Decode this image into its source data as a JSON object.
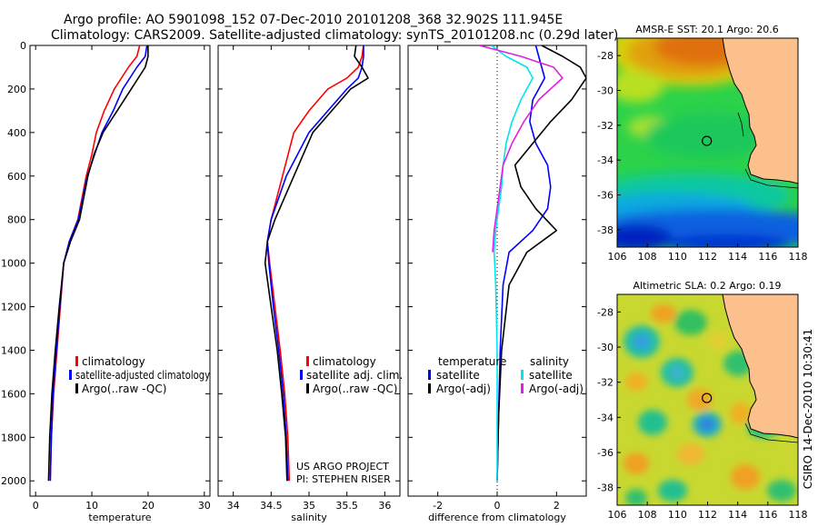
{
  "header": {
    "line1": "Argo profile: AO 5901098_152 07-Dec-2010 20101208_368 32.902S 111.945E",
    "line2": "Climatology: CARS2009. Satellite-adjusted climatology: synTS_20101208.nc (0.29d later)"
  },
  "side_label": "CSIRO 14-Dec-2010 10:30:41",
  "project": {
    "line1": "US ARGO PROJECT",
    "line2": "PI: STEPHEN RISER"
  },
  "colors": {
    "climatology": "#ff0000",
    "satellite": "#0000ff",
    "argo": "#000000",
    "sat_salinity": "#00e5ee",
    "argo_salinity": "#e020e0",
    "land": "#fbc08c"
  },
  "chart_data": [
    {
      "type": "line",
      "xlabel": "temperature",
      "xlim": [
        -1,
        31
      ],
      "ylim": [
        2070,
        0
      ],
      "xticks": [
        0,
        10,
        20,
        30
      ],
      "yticks": [
        0,
        200,
        400,
        600,
        800,
        1000,
        1200,
        1400,
        1600,
        1800,
        2000
      ],
      "legend": [
        "climatology",
        "satellite-adjusted climatology",
        "Argo(..raw -QC)"
      ],
      "series": [
        {
          "name": "climatology",
          "color": "#ff0000",
          "x": [
            18.5,
            18.0,
            16.5,
            14.0,
            12.2,
            10.8,
            10.0,
            9.0,
            7.5,
            6.0,
            5.0,
            4.4,
            3.8,
            3.2,
            2.8,
            2.6
          ],
          "y": [
            0,
            50,
            100,
            200,
            300,
            400,
            500,
            600,
            800,
            900,
            1000,
            1200,
            1400,
            1600,
            1800,
            2000
          ]
        },
        {
          "name": "satellite-adjusted climatology",
          "color": "#0000ff",
          "x": [
            19.8,
            19.5,
            18.0,
            15.5,
            13.8,
            11.8,
            10.5,
            9.2,
            7.6,
            6.0,
            5.0,
            4.3,
            3.7,
            3.1,
            2.8,
            2.6
          ],
          "y": [
            0,
            50,
            100,
            200,
            300,
            400,
            500,
            600,
            800,
            900,
            1000,
            1200,
            1400,
            1600,
            1800,
            2000
          ]
        },
        {
          "name": "Argo(..raw -QC)",
          "color": "#000000",
          "x": [
            20.0,
            20.0,
            19.5,
            17.0,
            14.5,
            12.0,
            10.4,
            9.3,
            7.8,
            6.2,
            5.0,
            4.2,
            3.5,
            2.9,
            2.5,
            2.3
          ],
          "y": [
            0,
            50,
            100,
            200,
            300,
            400,
            500,
            600,
            800,
            900,
            1000,
            1200,
            1400,
            1600,
            1800,
            2000
          ]
        }
      ]
    },
    {
      "type": "line",
      "xlabel": "salinity",
      "xlim": [
        33.8,
        36.2
      ],
      "ylim": [
        2070,
        0
      ],
      "xticks": [
        34,
        34.5,
        35,
        35.5,
        36
      ],
      "yticks": [
        0,
        200,
        400,
        600,
        800,
        1000,
        1200,
        1400,
        1600,
        1800,
        2000
      ],
      "legend": [
        "climatology",
        "satellite adj. clim.",
        "Argo(..raw -QC)"
      ],
      "series": [
        {
          "name": "climatology",
          "color": "#ff0000",
          "x": [
            35.72,
            35.7,
            35.65,
            35.5,
            35.25,
            35.0,
            34.8,
            34.65,
            34.5,
            34.45,
            34.48,
            34.55,
            34.62,
            34.68,
            34.72,
            34.74
          ],
          "y": [
            0,
            50,
            100,
            150,
            200,
            300,
            400,
            600,
            800,
            900,
            1000,
            1200,
            1400,
            1600,
            1800,
            2000
          ]
        },
        {
          "name": "satellite adj. clim.",
          "color": "#0000ff",
          "x": [
            35.72,
            35.72,
            35.7,
            35.65,
            35.5,
            35.25,
            35.0,
            34.7,
            34.5,
            34.45,
            34.47,
            34.53,
            34.6,
            34.66,
            34.7,
            34.72
          ],
          "y": [
            0,
            50,
            100,
            150,
            200,
            300,
            400,
            600,
            800,
            900,
            1000,
            1200,
            1400,
            1600,
            1800,
            2000
          ]
        },
        {
          "name": "Argo(..raw -QC)",
          "color": "#000000",
          "x": [
            35.62,
            35.6,
            35.7,
            35.78,
            35.55,
            35.3,
            35.05,
            34.8,
            34.55,
            34.45,
            34.42,
            34.5,
            34.58,
            34.64,
            34.69,
            34.71
          ],
          "y": [
            0,
            50,
            100,
            150,
            200,
            300,
            400,
            600,
            800,
            900,
            1000,
            1200,
            1400,
            1600,
            1800,
            2000
          ]
        }
      ]
    },
    {
      "type": "line",
      "xlabel": "difference from climatology",
      "xlim": [
        -3,
        3
      ],
      "ylim": [
        2070,
        0
      ],
      "xticks": [
        -2,
        0,
        2
      ],
      "yticks": [
        0,
        200,
        400,
        600,
        800,
        1000,
        1200,
        1400,
        1600,
        1800,
        2000
      ],
      "legend": [
        "temperature",
        "satellite",
        "Argo(-adj)",
        "salinity",
        "satellite",
        "Argo(-adj)"
      ],
      "series": [
        {
          "name": "satellite",
          "color": "#0000ff",
          "x": [
            1.3,
            1.4,
            1.5,
            1.6,
            1.2,
            1.1,
            1.3,
            1.7,
            1.8,
            1.7,
            1.2,
            0.4,
            0.2,
            0.1,
            0.05,
            0.0
          ],
          "y": [
            0,
            50,
            100,
            150,
            250,
            350,
            450,
            550,
            650,
            750,
            850,
            950,
            1100,
            1400,
            1700,
            2000
          ]
        },
        {
          "name": "Argo(-adj)",
          "color": "#000000",
          "x": [
            1.5,
            2.2,
            2.8,
            3.0,
            2.5,
            1.8,
            1.2,
            0.6,
            0.8,
            1.3,
            2.0,
            1.0,
            0.4,
            0.15,
            0.05,
            0.0
          ],
          "y": [
            0,
            50,
            100,
            150,
            250,
            350,
            450,
            550,
            650,
            750,
            850,
            950,
            1100,
            1400,
            1700,
            2000
          ]
        },
        {
          "name": "salinity satellite",
          "color": "#00e5ee",
          "x": [
            -0.2,
            0.3,
            1.0,
            1.2,
            0.8,
            0.5,
            0.3,
            0.2,
            0.15,
            0.05,
            -0.05,
            -0.1,
            -0.05,
            0.0,
            0.0,
            0.0
          ],
          "y": [
            0,
            50,
            100,
            150,
            250,
            350,
            450,
            550,
            650,
            750,
            850,
            950,
            1100,
            1400,
            1700,
            2000
          ]
        },
        {
          "name": "salinity Argo(-adj)",
          "color": "#e020e0",
          "x": [
            -0.6,
            0.8,
            1.9,
            2.2,
            1.4,
            0.9,
            0.5,
            0.2,
            0.1,
            0.0,
            -0.1,
            -0.15
          ],
          "y": [
            0,
            50,
            100,
            150,
            250,
            350,
            450,
            550,
            650,
            750,
            850,
            950
          ]
        }
      ]
    },
    {
      "type": "heatmap",
      "title": "AMSR-E SST: 20.1 Argo: 20.6",
      "xlim": [
        106,
        118
      ],
      "ylim": [
        -39,
        -27
      ],
      "xticks": [
        106,
        108,
        110,
        112,
        114,
        116,
        118
      ],
      "yticks": [
        -28,
        -30,
        -32,
        -34,
        -36,
        -38
      ],
      "argo_position": [
        111.95,
        -32.9
      ]
    },
    {
      "type": "heatmap",
      "title": "Altimetric SLA: 0.2 Argo: 0.19",
      "xlim": [
        106,
        118
      ],
      "ylim": [
        -39,
        -27
      ],
      "xticks": [
        106,
        108,
        110,
        112,
        114,
        116,
        118
      ],
      "yticks": [
        -28,
        -30,
        -32,
        -34,
        -36,
        -38
      ],
      "argo_position": [
        111.95,
        -32.9
      ]
    }
  ]
}
